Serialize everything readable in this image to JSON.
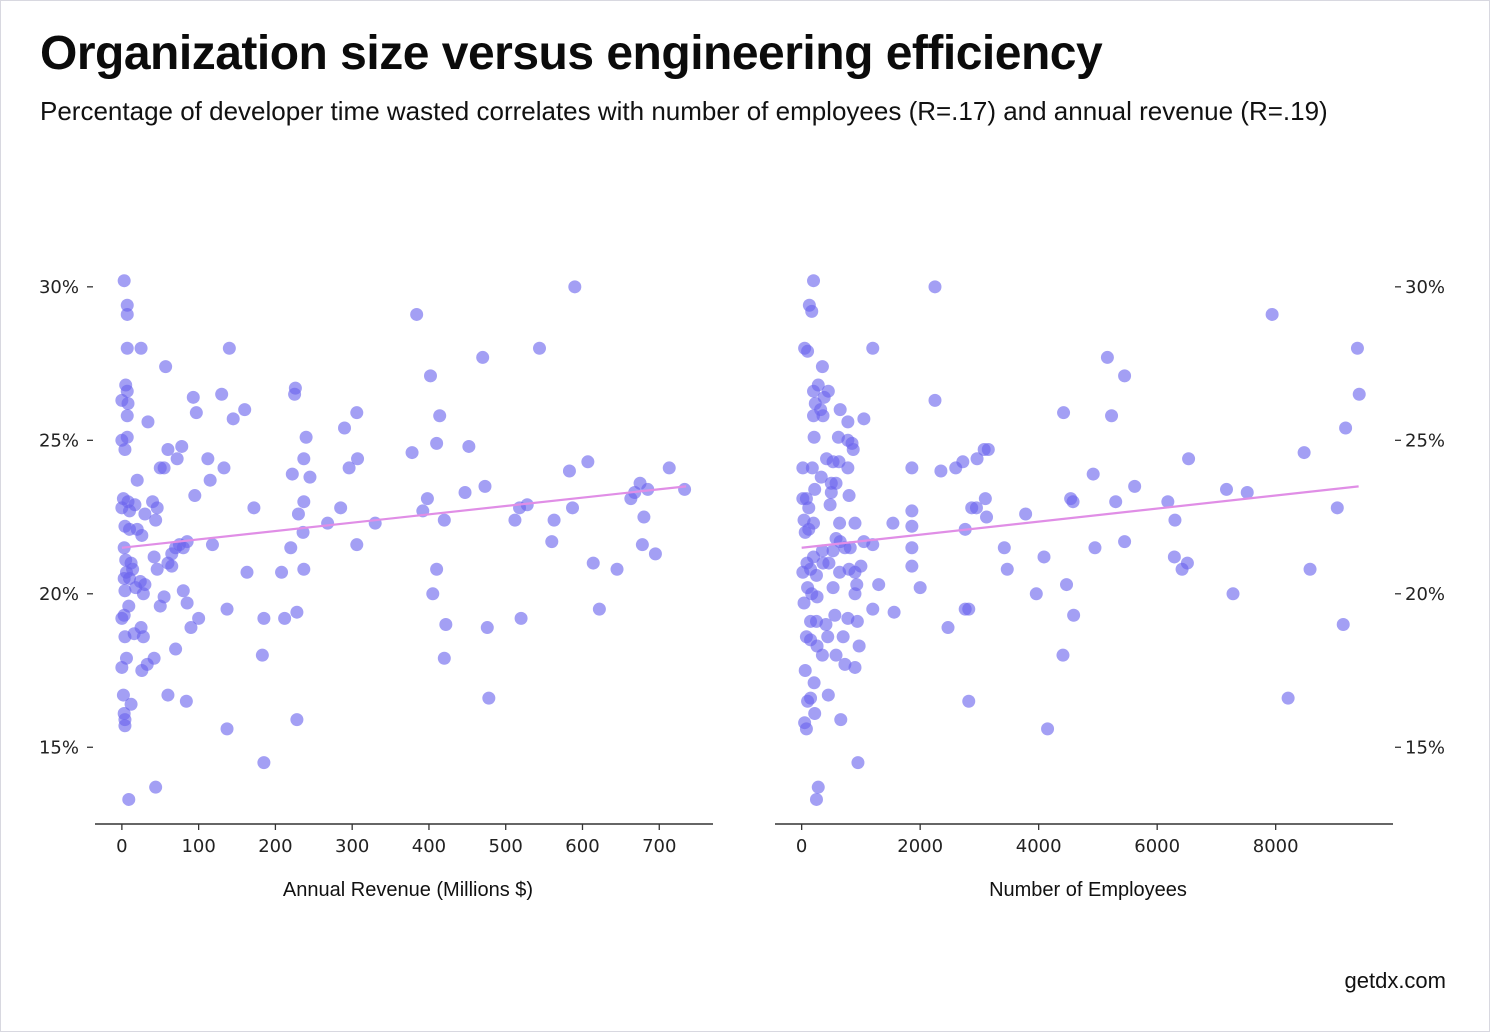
{
  "header": {
    "title": "Organization size versus engineering efficiency",
    "subtitle": "Percentage of developer time wasted correlates with number of employees (R=.17) and annual revenue (R=.19)"
  },
  "footer": {
    "credit": "getdx.com"
  },
  "colors": {
    "point": "#6a64ee",
    "trend": "#e08ee6",
    "axis": "#333333"
  },
  "chart_data": [
    {
      "type": "scatter",
      "xlabel": "Annual Revenue (Millions $)",
      "ylabel": "",
      "xlim": [
        -35,
        770
      ],
      "ylim": [
        12.5,
        31.2
      ],
      "xticks": [
        0,
        100,
        200,
        300,
        400,
        500,
        600,
        700
      ],
      "yticks": [
        15,
        20,
        25,
        30
      ],
      "ytick_labels": [
        "15%",
        "20%",
        "25%",
        "30%"
      ],
      "y_axis_side": "left",
      "trendline": [
        [
          0,
          21.5
        ],
        [
          735,
          23.5
        ]
      ],
      "points": [
        [
          3,
          30.2
        ],
        [
          7,
          29.4
        ],
        [
          7,
          29.1
        ],
        [
          7,
          28.0
        ],
        [
          25,
          28.0
        ],
        [
          57,
          27.4
        ],
        [
          5,
          26.8
        ],
        [
          7,
          26.6
        ],
        [
          0,
          26.3
        ],
        [
          8,
          26.2
        ],
        [
          7,
          25.8
        ],
        [
          34,
          25.6
        ],
        [
          0,
          25.0
        ],
        [
          7,
          25.1
        ],
        [
          4,
          24.7
        ],
        [
          20,
          23.7
        ],
        [
          2,
          23.1
        ],
        [
          8,
          23.0
        ],
        [
          17,
          22.9
        ],
        [
          0,
          22.8
        ],
        [
          10,
          22.7
        ],
        [
          30,
          22.6
        ],
        [
          4,
          22.2
        ],
        [
          10,
          22.1
        ],
        [
          20,
          22.1
        ],
        [
          26,
          21.9
        ],
        [
          3,
          21.5
        ],
        [
          5,
          21.1
        ],
        [
          12,
          21.0
        ],
        [
          6,
          20.7
        ],
        [
          14,
          20.8
        ],
        [
          3,
          20.5
        ],
        [
          10,
          20.5
        ],
        [
          24,
          20.4
        ],
        [
          30,
          20.3
        ],
        [
          18,
          20.2
        ],
        [
          4,
          20.1
        ],
        [
          28,
          20.0
        ],
        [
          0,
          19.2
        ],
        [
          9,
          19.6
        ],
        [
          3,
          19.3
        ],
        [
          25,
          18.9
        ],
        [
          16,
          18.7
        ],
        [
          4,
          18.6
        ],
        [
          28,
          18.6
        ],
        [
          6,
          17.9
        ],
        [
          0,
          17.6
        ],
        [
          26,
          17.5
        ],
        [
          2,
          16.7
        ],
        [
          12,
          16.4
        ],
        [
          3,
          16.1
        ],
        [
          4,
          15.9
        ],
        [
          4,
          15.7
        ],
        [
          9,
          13.3
        ],
        [
          40,
          23.0
        ],
        [
          44,
          22.4
        ],
        [
          46,
          22.8
        ],
        [
          60,
          24.7
        ],
        [
          50,
          24.1
        ],
        [
          55,
          24.1
        ],
        [
          42,
          21.2
        ],
        [
          46,
          20.8
        ],
        [
          60,
          21.0
        ],
        [
          65,
          21.3
        ],
        [
          70,
          21.5
        ],
        [
          75,
          21.6
        ],
        [
          80,
          21.5
        ],
        [
          85,
          21.7
        ],
        [
          65,
          20.9
        ],
        [
          55,
          19.9
        ],
        [
          50,
          19.6
        ],
        [
          80,
          20.1
        ],
        [
          85,
          19.7
        ],
        [
          90,
          18.9
        ],
        [
          100,
          19.2
        ],
        [
          70,
          18.2
        ],
        [
          42,
          17.9
        ],
        [
          33,
          17.7
        ],
        [
          60,
          16.7
        ],
        [
          84,
          16.5
        ],
        [
          44,
          13.7
        ],
        [
          72,
          24.4
        ],
        [
          78,
          24.8
        ],
        [
          93,
          26.4
        ],
        [
          97,
          25.9
        ],
        [
          95,
          23.2
        ],
        [
          112,
          24.4
        ],
        [
          115,
          23.7
        ],
        [
          118,
          21.6
        ],
        [
          130,
          26.5
        ],
        [
          140,
          28.0
        ],
        [
          145,
          25.7
        ],
        [
          160,
          26.0
        ],
        [
          133,
          24.1
        ],
        [
          137,
          19.5
        ],
        [
          137,
          15.6
        ],
        [
          172,
          22.8
        ],
        [
          163,
          20.7
        ],
        [
          185,
          19.2
        ],
        [
          183,
          18.0
        ],
        [
          185,
          14.5
        ],
        [
          225,
          26.5
        ],
        [
          226,
          26.7
        ],
        [
          240,
          25.1
        ],
        [
          222,
          23.9
        ],
        [
          237,
          24.4
        ],
        [
          245,
          23.8
        ],
        [
          237,
          23.0
        ],
        [
          230,
          22.6
        ],
        [
          236,
          22.0
        ],
        [
          220,
          21.5
        ],
        [
          237,
          20.8
        ],
        [
          208,
          20.7
        ],
        [
          212,
          19.2
        ],
        [
          228,
          19.4
        ],
        [
          228,
          15.9
        ],
        [
          290,
          25.4
        ],
        [
          306,
          25.9
        ],
        [
          296,
          24.1
        ],
        [
          307,
          24.4
        ],
        [
          285,
          22.8
        ],
        [
          268,
          22.3
        ],
        [
          306,
          21.6
        ],
        [
          330,
          22.3
        ],
        [
          384,
          29.1
        ],
        [
          378,
          24.6
        ],
        [
          402,
          27.1
        ],
        [
          410,
          24.9
        ],
        [
          414,
          25.8
        ],
        [
          398,
          23.1
        ],
        [
          392,
          22.7
        ],
        [
          420,
          22.4
        ],
        [
          410,
          20.8
        ],
        [
          405,
          20.0
        ],
        [
          422,
          19.0
        ],
        [
          420,
          17.9
        ],
        [
          447,
          23.3
        ],
        [
          452,
          24.8
        ],
        [
          470,
          27.7
        ],
        [
          473,
          23.5
        ],
        [
          476,
          18.9
        ],
        [
          478,
          16.6
        ],
        [
          512,
          22.4
        ],
        [
          518,
          22.8
        ],
        [
          528,
          22.9
        ],
        [
          520,
          19.2
        ],
        [
          544,
          28.0
        ],
        [
          560,
          21.7
        ],
        [
          563,
          22.4
        ],
        [
          583,
          24.0
        ],
        [
          587,
          22.8
        ],
        [
          590,
          30.0
        ],
        [
          607,
          24.3
        ],
        [
          614,
          21.0
        ],
        [
          622,
          19.5
        ],
        [
          645,
          20.8
        ],
        [
          663,
          23.1
        ],
        [
          668,
          23.3
        ],
        [
          675,
          23.6
        ],
        [
          678,
          21.6
        ],
        [
          680,
          22.5
        ],
        [
          685,
          23.4
        ],
        [
          695,
          21.3
        ],
        [
          713,
          24.1
        ],
        [
          733,
          23.4
        ]
      ]
    },
    {
      "type": "scatter",
      "xlabel": "Number of Employees",
      "ylabel": "",
      "xlim": [
        -450,
        9980
      ],
      "ylim": [
        12.5,
        31.2
      ],
      "xticks": [
        0,
        2000,
        4000,
        6000,
        8000
      ],
      "yticks": [
        15,
        20,
        25,
        30
      ],
      "ytick_labels": [
        "15%",
        "20%",
        "25%",
        "30%"
      ],
      "y_axis_side": "right",
      "trendline": [
        [
          0,
          21.5
        ],
        [
          9400,
          23.5
        ]
      ],
      "points": [
        [
          200,
          30.2
        ],
        [
          130,
          29.4
        ],
        [
          170,
          29.2
        ],
        [
          50,
          28.0
        ],
        [
          100,
          27.9
        ],
        [
          350,
          27.4
        ],
        [
          200,
          26.6
        ],
        [
          280,
          26.8
        ],
        [
          450,
          26.6
        ],
        [
          380,
          26.4
        ],
        [
          230,
          26.2
        ],
        [
          320,
          26.0
        ],
        [
          650,
          26.0
        ],
        [
          200,
          25.8
        ],
        [
          360,
          25.8
        ],
        [
          780,
          25.6
        ],
        [
          1050,
          25.7
        ],
        [
          210,
          25.1
        ],
        [
          620,
          25.1
        ],
        [
          780,
          25.0
        ],
        [
          850,
          24.9
        ],
        [
          870,
          24.7
        ],
        [
          20,
          24.1
        ],
        [
          180,
          24.1
        ],
        [
          420,
          24.4
        ],
        [
          530,
          24.3
        ],
        [
          630,
          24.3
        ],
        [
          780,
          24.1
        ],
        [
          500,
          23.6
        ],
        [
          580,
          23.6
        ],
        [
          330,
          23.8
        ],
        [
          220,
          23.4
        ],
        [
          500,
          23.3
        ],
        [
          800,
          23.2
        ],
        [
          20,
          23.1
        ],
        [
          80,
          23.1
        ],
        [
          480,
          22.9
        ],
        [
          120,
          22.8
        ],
        [
          40,
          22.4
        ],
        [
          200,
          22.3
        ],
        [
          640,
          22.3
        ],
        [
          900,
          22.3
        ],
        [
          120,
          22.1
        ],
        [
          60,
          22.0
        ],
        [
          580,
          21.8
        ],
        [
          650,
          21.7
        ],
        [
          730,
          21.5
        ],
        [
          1050,
          21.7
        ],
        [
          350,
          21.4
        ],
        [
          530,
          21.4
        ],
        [
          820,
          21.5
        ],
        [
          1200,
          21.6
        ],
        [
          200,
          21.2
        ],
        [
          360,
          21.0
        ],
        [
          460,
          21.0
        ],
        [
          90,
          21.0
        ],
        [
          150,
          20.8
        ],
        [
          250,
          20.6
        ],
        [
          640,
          20.7
        ],
        [
          800,
          20.8
        ],
        [
          900,
          20.7
        ],
        [
          1000,
          20.9
        ],
        [
          20,
          20.7
        ],
        [
          100,
          20.2
        ],
        [
          170,
          20.0
        ],
        [
          260,
          19.9
        ],
        [
          530,
          20.2
        ],
        [
          930,
          20.3
        ],
        [
          1300,
          20.3
        ],
        [
          900,
          20.0
        ],
        [
          40,
          19.7
        ],
        [
          150,
          19.1
        ],
        [
          250,
          19.1
        ],
        [
          410,
          19.0
        ],
        [
          560,
          19.3
        ],
        [
          780,
          19.2
        ],
        [
          940,
          19.1
        ],
        [
          1200,
          19.5
        ],
        [
          80,
          18.6
        ],
        [
          150,
          18.5
        ],
        [
          260,
          18.3
        ],
        [
          440,
          18.6
        ],
        [
          700,
          18.6
        ],
        [
          970,
          18.3
        ],
        [
          350,
          18.0
        ],
        [
          580,
          18.0
        ],
        [
          730,
          17.7
        ],
        [
          900,
          17.6
        ],
        [
          60,
          17.5
        ],
        [
          210,
          17.1
        ],
        [
          450,
          16.7
        ],
        [
          150,
          16.6
        ],
        [
          100,
          16.5
        ],
        [
          220,
          16.1
        ],
        [
          50,
          15.8
        ],
        [
          80,
          15.6
        ],
        [
          660,
          15.9
        ],
        [
          950,
          14.5
        ],
        [
          280,
          13.7
        ],
        [
          250,
          13.3
        ],
        [
          1200,
          28.0
        ],
        [
          1540,
          22.3
        ],
        [
          1560,
          19.4
        ],
        [
          1860,
          24.1
        ],
        [
          1860,
          22.7
        ],
        [
          1860,
          22.2
        ],
        [
          1860,
          21.5
        ],
        [
          1860,
          20.9
        ],
        [
          2000,
          20.2
        ],
        [
          2250,
          30.0
        ],
        [
          2250,
          26.3
        ],
        [
          2350,
          24.0
        ],
        [
          2470,
          18.9
        ],
        [
          2600,
          24.1
        ],
        [
          2720,
          24.3
        ],
        [
          2760,
          22.1
        ],
        [
          2760,
          19.5
        ],
        [
          2820,
          16.5
        ],
        [
          2820,
          19.5
        ],
        [
          2870,
          22.8
        ],
        [
          2950,
          22.8
        ],
        [
          2960,
          24.4
        ],
        [
          3080,
          24.7
        ],
        [
          3150,
          24.7
        ],
        [
          3100,
          23.1
        ],
        [
          3120,
          22.5
        ],
        [
          3420,
          21.5
        ],
        [
          3470,
          20.8
        ],
        [
          3780,
          22.6
        ],
        [
          3960,
          20.0
        ],
        [
          4090,
          21.2
        ],
        [
          4150,
          15.6
        ],
        [
          4420,
          25.9
        ],
        [
          4410,
          18.0
        ],
        [
          4470,
          20.3
        ],
        [
          4540,
          23.1
        ],
        [
          4580,
          23.0
        ],
        [
          4590,
          19.3
        ],
        [
          4920,
          23.9
        ],
        [
          4950,
          21.5
        ],
        [
          5160,
          27.7
        ],
        [
          5230,
          25.8
        ],
        [
          5300,
          23.0
        ],
        [
          5450,
          27.1
        ],
        [
          5450,
          21.7
        ],
        [
          5620,
          23.5
        ],
        [
          6180,
          23.0
        ],
        [
          6290,
          21.2
        ],
        [
          6300,
          22.4
        ],
        [
          6420,
          20.8
        ],
        [
          6530,
          24.4
        ],
        [
          6510,
          21.0
        ],
        [
          7170,
          23.4
        ],
        [
          7280,
          20.0
        ],
        [
          7520,
          23.3
        ],
        [
          7940,
          29.1
        ],
        [
          8210,
          16.6
        ],
        [
          8480,
          24.6
        ],
        [
          8580,
          20.8
        ],
        [
          9040,
          22.8
        ],
        [
          9140,
          19.0
        ],
        [
          9180,
          25.4
        ],
        [
          9380,
          28.0
        ],
        [
          9410,
          26.5
        ]
      ]
    }
  ]
}
